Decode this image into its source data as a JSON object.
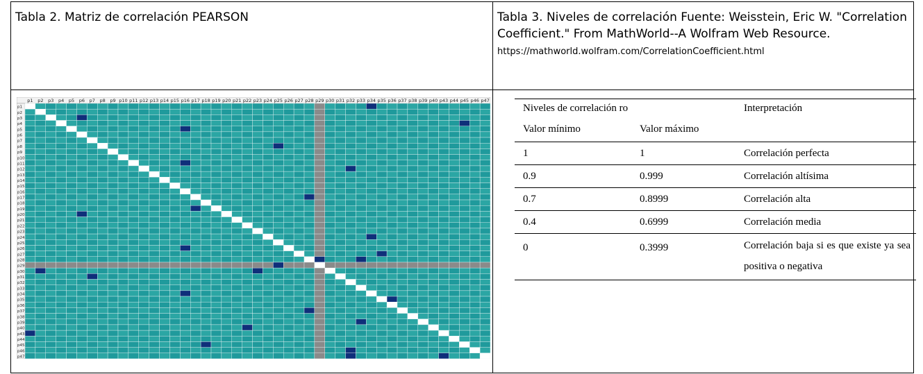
{
  "left_caption": "Tabla 2.  Matriz de correlación PEARSON",
  "right_caption": {
    "text": "Tabla 3.  Niveles de correlación Fuente: Weisstein, Eric W. \"Correlation Coefficient.\" From MathWorld--A Wolfram Web Resource.",
    "url": "https://mathworld.wolfram.com/CorrelationCoefficient.html"
  },
  "matrix": {
    "labels": [
      "p1",
      "p2",
      "p3",
      "p4",
      "p5",
      "p6",
      "p7",
      "p8",
      "p9",
      "p10",
      "p11",
      "p12",
      "p13",
      "p14",
      "p15",
      "p16",
      "p17",
      "p18",
      "p19",
      "p20",
      "p21",
      "p22",
      "p23",
      "p24",
      "p25",
      "p26",
      "p27",
      "p28",
      "p29",
      "p30",
      "p31",
      "p32",
      "p33",
      "p34",
      "p35",
      "p36",
      "p37",
      "p38",
      "p39",
      "p40",
      "p43",
      "p44",
      "p45",
      "p46",
      "p47"
    ],
    "colors": {
      "cell": "#1f9a9c",
      "cell_alt": "#2ba6a4",
      "diagonal": "#ffffff",
      "highlight": "#0f2f7a",
      "grey_column": "#8a8a8a",
      "header": "#f2f2f2"
    }
  },
  "levels_table": {
    "header_group": "Niveles de correlación ro",
    "header_interp": "Interpretación",
    "header_min": "Valor mínimo",
    "header_max": "Valor máximo",
    "rows": [
      {
        "min": "1",
        "max": "1",
        "interp": "Correlación perfecta"
      },
      {
        "min": "0.9",
        "max": "0.999",
        "interp": "Correlación altísima"
      },
      {
        "min": "0.7",
        "max": "0.8999",
        "interp": "Correlación alta"
      },
      {
        "min": "0.4",
        "max": "0.6999",
        "interp": "Correlación media"
      },
      {
        "min": "0",
        "max": "0.3999",
        "interp": "Correlación baja si es que existe ya sea positiva o negativa"
      }
    ]
  }
}
